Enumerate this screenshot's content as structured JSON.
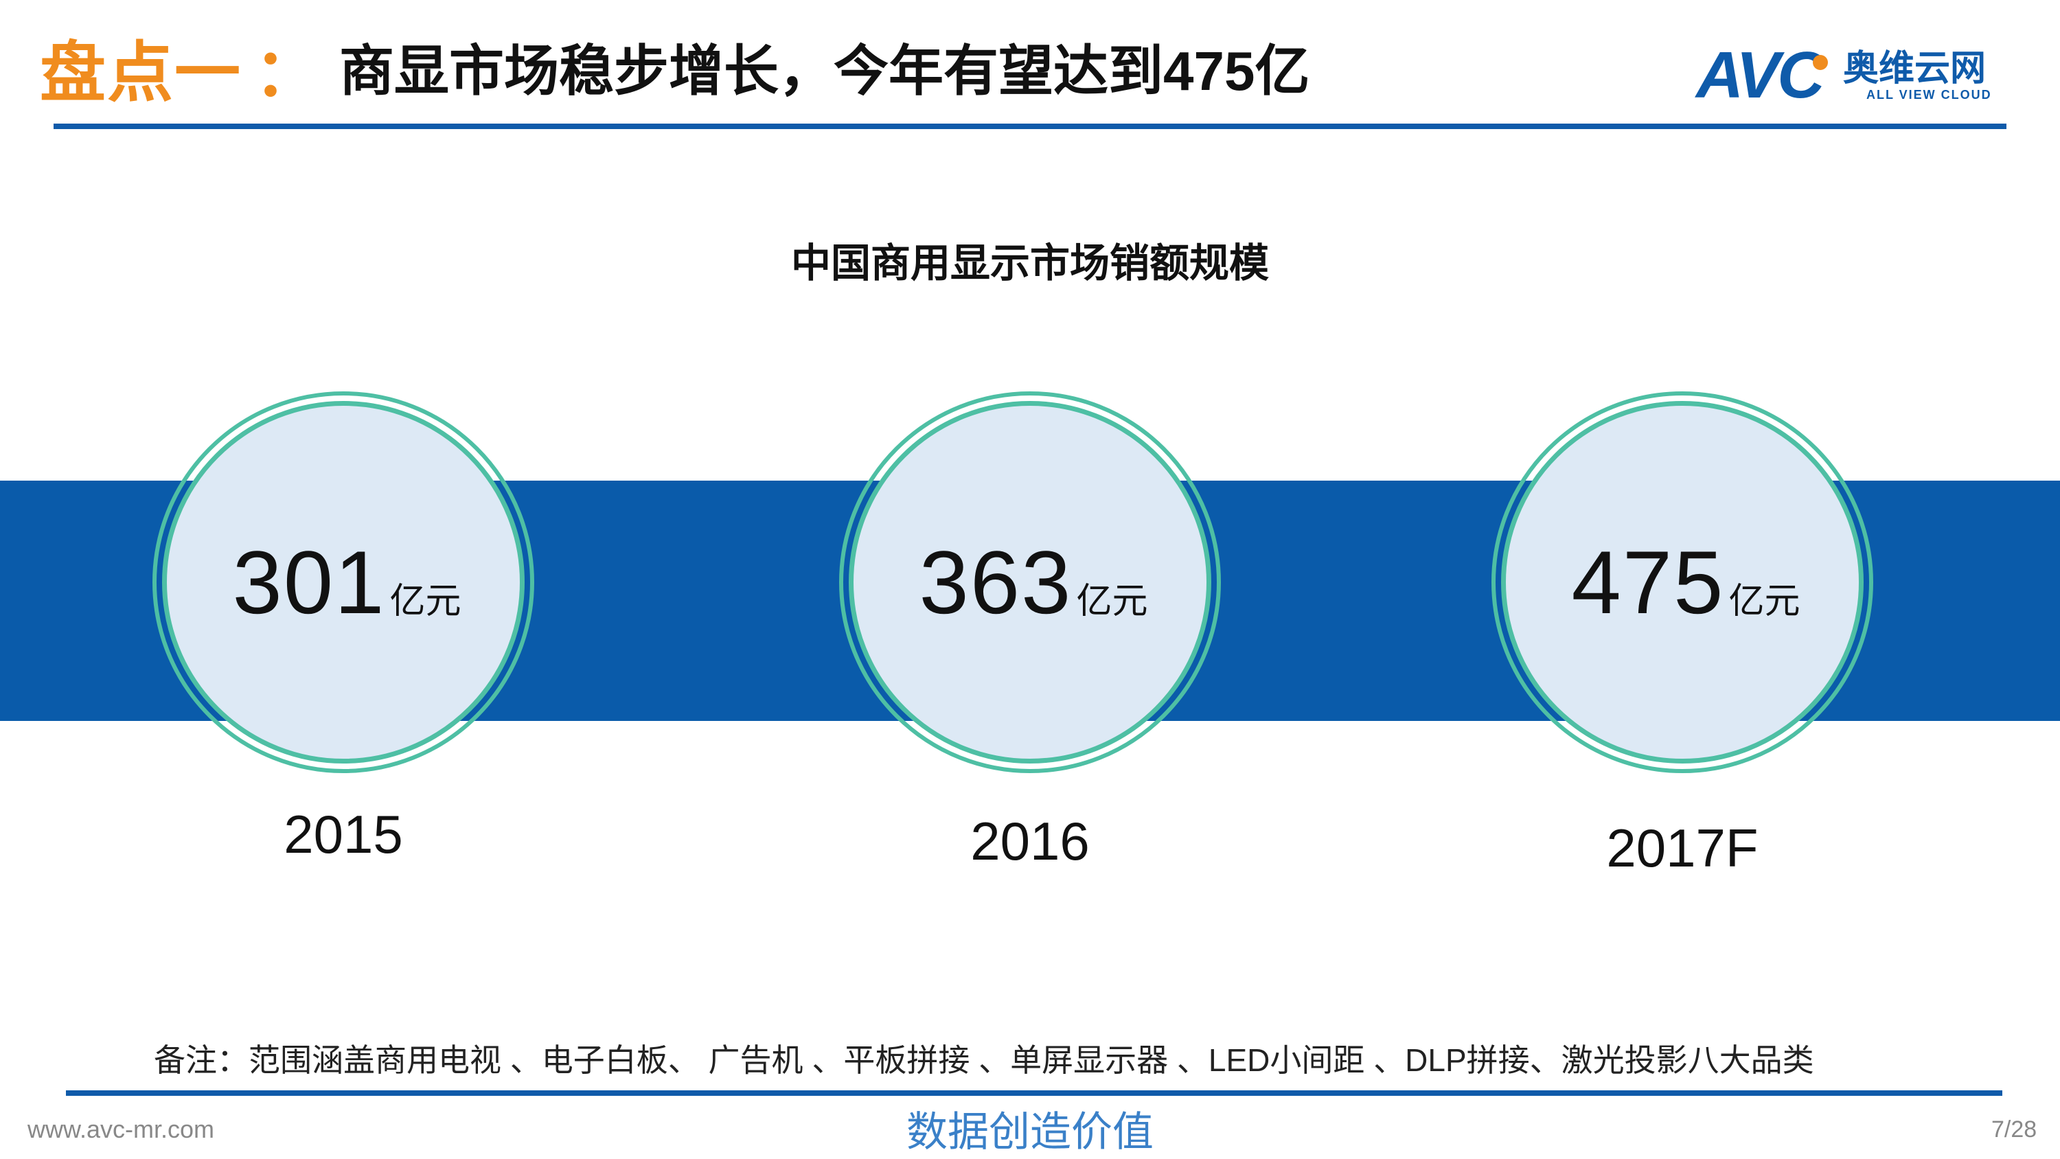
{
  "header": {
    "title_prefix": "盘点一",
    "title_colon": "：",
    "title_main": "商显市场稳步增长，今年有望达到475亿"
  },
  "logo": {
    "mark": "AVC",
    "name_cn": "奥维云网",
    "name_en": "ALL VIEW CLOUD"
  },
  "colors": {
    "accent_orange": "#F08C1E",
    "brand_blue": "#0F5BAA",
    "band_blue": "#0A5BAA",
    "circle_ring": "#4EBFA4",
    "circle_fill": "#DDE9F5"
  },
  "chart_data": {
    "type": "table",
    "title": "中国商用显示市场销额规模",
    "unit": "亿元",
    "categories": [
      "2015",
      "2016",
      "2017F"
    ],
    "values": [
      301,
      363,
      475
    ]
  },
  "note": "备注：范围涵盖商用电视 、电子白板、 广告机 、平板拼接 、单屏显示器 、LED小间距 、DLP拼接、激光投影八大品类",
  "footer": {
    "url": "www.avc-mr.com",
    "slogan": "数据创造价值",
    "page": "7/28"
  }
}
